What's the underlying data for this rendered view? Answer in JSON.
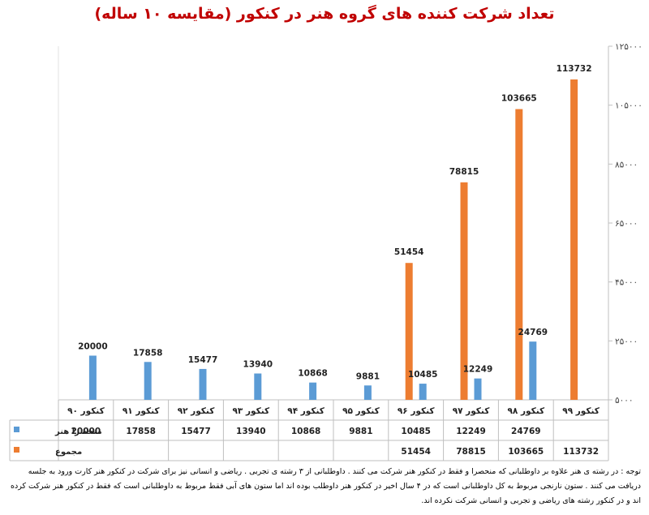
{
  "chart_data": {
    "type": "bar",
    "title": "تعداد شرکت کننده های گروه هنر در کنکور (مقایسه ۱۰ ساله)",
    "categories": [
      "کنکور ۹۹",
      "کنکور ۹۸",
      "کنکور ۹۷",
      "کنکور ۹۶",
      "کنکور ۹۵",
      "کنکور ۹۴",
      "کنکور ۹۳",
      "کنکور ۹۲",
      "کنکور ۹۱",
      "کنکور ۹۰"
    ],
    "series": [
      {
        "name": "منحصرا هنر",
        "color": "#5b9bd5",
        "values": [
          null,
          24769,
          12249,
          10485,
          9881,
          10868,
          13940,
          15477,
          17858,
          20000
        ]
      },
      {
        "name": "مجموع",
        "color": "#ed7d31",
        "values": [
          113732,
          103665,
          78815,
          51454,
          null,
          null,
          null,
          null,
          null,
          null
        ]
      }
    ],
    "ylim": [
      5000,
      125000
    ],
    "yticks": [
      5000,
      25000,
      45000,
      65000,
      85000,
      105000,
      125000
    ],
    "ytick_labels": [
      "۵۰۰۰",
      "۲۵۰۰۰",
      "۴۵۰۰۰",
      "۶۵۰۰۰",
      "۸۵۰۰۰",
      "۱۰۵۰۰۰",
      "۱۲۵۰۰۰"
    ],
    "y_axis_position": "right",
    "legend": "data-table",
    "grid": false
  },
  "footnote": "توجه : در رشته ی هنر علاوه بر داوطلبانی که منحصرا و فقط در کنکور هنر شرکت می کنند . داوطلبانی از ۳ رشته ی تجربی . ریاضی و انسانی نیز برای شرکت در کنکور هنر کارت ورود به جلسه دریافت می کنند . ستون نارنجی مربوط به کل داوطلبانی است که در ۴ سال اخیر در کنکور هنر داوطلب بوده اند اما ستون های آبی فقط مربوط به داوطلبانی است که فقط در کنکور هنر شرکت کرده اند و در کنکور رشته های ریاضی و تجربی و انسانی شرکت نکرده اند."
}
